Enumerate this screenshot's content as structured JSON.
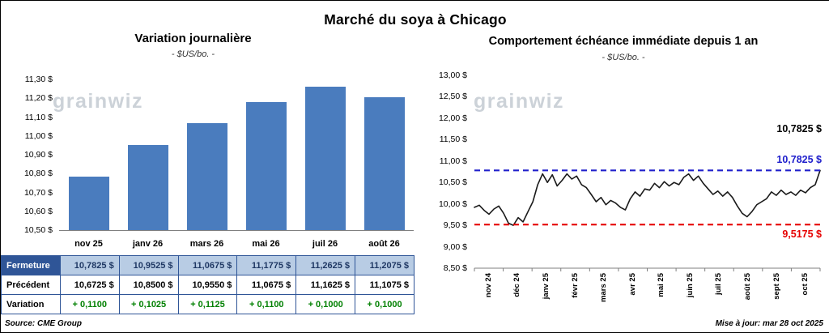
{
  "page": {
    "title": "Marché du soya à Chicago",
    "source": "Source: CME Group",
    "updated": "Mise à jour: mar 28 oct 2025"
  },
  "watermark": "grainwiz",
  "colors": {
    "bar": "#4a7cbe",
    "table_header_bg": "#2f5597",
    "table_highlight_bg": "#b8cce4",
    "table_highlight_text": "#1f3864",
    "variation_green": "#008000",
    "close_line_blue": "#2020cc",
    "low_line_red": "#e60000"
  },
  "table": {
    "columns": [
      "nov 25",
      "janv 26",
      "mars 26",
      "mai 26",
      "juil 26",
      "août 26"
    ],
    "rows": [
      {
        "label": "Fermeture",
        "style": "close",
        "values": [
          "10,7825  $",
          "10,9525  $",
          "11,0675  $",
          "11,1775  $",
          "11,2625  $",
          "11,2075  $"
        ]
      },
      {
        "label": "Précédent",
        "style": "prev",
        "values": [
          "10,6725  $",
          "10,8500  $",
          "10,9550  $",
          "11,0675  $",
          "11,1625  $",
          "11,1075  $"
        ]
      },
      {
        "label": "Variation",
        "style": "delta",
        "values": [
          "+ 0,1100",
          "+ 0,1025",
          "+ 0,1125",
          "+ 0,1100",
          "+ 0,1000",
          "+ 0,1000"
        ],
        "value_color": "#008000"
      }
    ]
  },
  "chart_data": [
    {
      "type": "bar",
      "title": "Variation journalière",
      "subtitle": "- $US/bo. -",
      "categories": [
        "nov 25",
        "janv 26",
        "mars 26",
        "mai 26",
        "juil 26",
        "août 26"
      ],
      "values": [
        10.7825,
        10.9525,
        11.0675,
        11.1775,
        11.2625,
        11.2075
      ],
      "ylim": [
        10.5,
        11.3
      ],
      "ytick_labels": [
        "11,30 $",
        "11,20 $",
        "11,10 $",
        "11,00 $",
        "10,90 $",
        "10,80 $",
        "10,70 $",
        "10,60 $",
        "10,50 $"
      ],
      "bar_color": "#4a7cbe",
      "grid": false,
      "legend": "none"
    },
    {
      "type": "line",
      "title": "Comportement échéance immédiate depuis 1 an",
      "subtitle": "- $US/bo. -",
      "x_labels": [
        "nov 24",
        "déc 24",
        "janv 25",
        "févr 25",
        "mars 25",
        "avr 25",
        "mai 25",
        "juin 25",
        "juil 25",
        "août 25",
        "sept 25",
        "oct 25"
      ],
      "values": [
        9.92,
        9.97,
        9.85,
        9.76,
        9.88,
        9.95,
        9.78,
        9.55,
        9.5,
        9.68,
        9.58,
        9.82,
        10.05,
        10.45,
        10.7,
        10.5,
        10.68,
        10.42,
        10.55,
        10.7,
        10.58,
        10.65,
        10.45,
        10.38,
        10.22,
        10.05,
        10.15,
        9.98,
        10.08,
        10.02,
        9.92,
        9.86,
        10.12,
        10.28,
        10.18,
        10.35,
        10.32,
        10.48,
        10.38,
        10.52,
        10.42,
        10.5,
        10.45,
        10.62,
        10.7,
        10.55,
        10.65,
        10.48,
        10.35,
        10.22,
        10.3,
        10.18,
        10.28,
        10.15,
        9.95,
        9.78,
        9.7,
        9.82,
        9.98,
        10.05,
        10.12,
        10.28,
        10.2,
        10.32,
        10.22,
        10.28,
        10.2,
        10.32,
        10.26,
        10.38,
        10.45,
        10.78
      ],
      "ylim": [
        8.5,
        13.0
      ],
      "ytick_labels": [
        "13,00 $",
        "12,50 $",
        "12,00 $",
        "11,50 $",
        "11,00 $",
        "10,50 $",
        "10,00 $",
        "9,50 $",
        "9,00 $",
        "8,50 $"
      ],
      "line_color": "#1a1a1a",
      "reference_lines": [
        {
          "name": "fermeture",
          "value": 10.7825,
          "color": "#2020cc",
          "style": "dashed"
        },
        {
          "name": "plus-bas",
          "value": 9.5175,
          "color": "#e60000",
          "style": "dashed"
        }
      ],
      "annotations": [
        {
          "text": "10,7825 $",
          "color": "#000000"
        },
        {
          "text": "10,7825 $",
          "color": "#2020cc"
        },
        {
          "text": "9,5175 $",
          "color": "#e60000"
        }
      ],
      "grid": false,
      "legend": "none"
    }
  ]
}
